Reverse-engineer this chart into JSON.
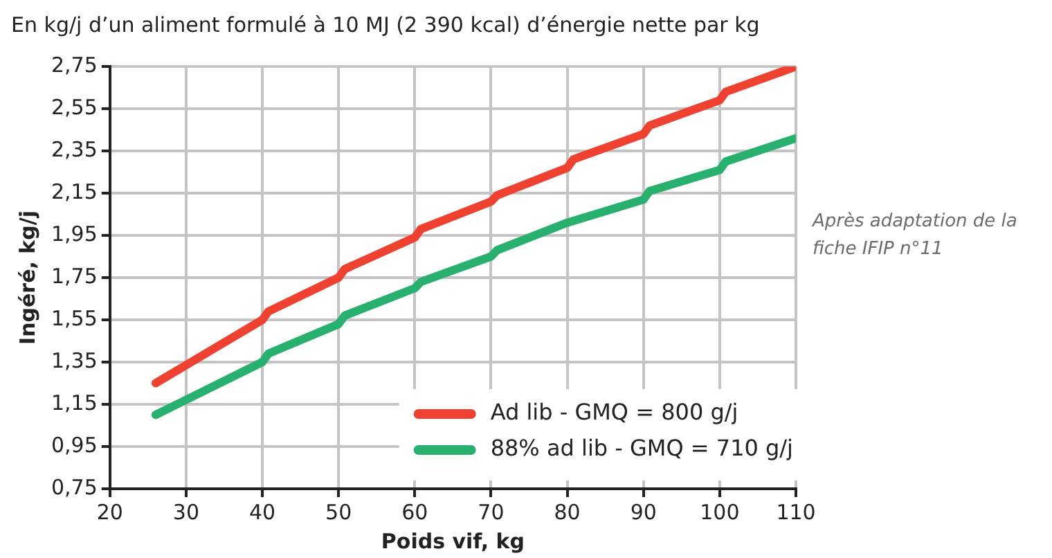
{
  "chart_data": {
    "type": "line",
    "title": "En kg/j d’un aliment formulé à 10 MJ (2 390 kcal) d’énergie nette par kg",
    "xlabel": "Poids vif, kg",
    "ylabel": "Ingéré, kg/j",
    "annotations": [
      "Après adaptation de la fiche IFIP n°11"
    ],
    "series": [
      {
        "name": "Ad lib - GMQ = 800 g/j",
        "color": "#ee4130",
        "x": [
          26,
          40,
          40.8,
          50,
          50.8,
          60,
          60.8,
          70,
          70.8,
          80,
          80.8,
          90,
          90.8,
          100,
          100.8,
          110
        ],
        "values": [
          1.25,
          1.55,
          1.59,
          1.75,
          1.79,
          1.94,
          1.98,
          2.11,
          2.14,
          2.27,
          2.31,
          2.43,
          2.47,
          2.59,
          2.63,
          2.75
        ]
      },
      {
        "name": "88% ad lib - GMQ = 710 g/j",
        "color": "#27b06e",
        "x": [
          26,
          40,
          40.8,
          50,
          50.8,
          60,
          60.8,
          70,
          70.8,
          80,
          90,
          90.8,
          100,
          100.8,
          110
        ],
        "values": [
          1.1,
          1.35,
          1.39,
          1.53,
          1.57,
          1.7,
          1.73,
          1.85,
          1.88,
          2.01,
          2.12,
          2.16,
          2.26,
          2.3,
          2.41
        ]
      }
    ],
    "xlim": [
      20,
      110
    ],
    "xticks": [
      20,
      30,
      40,
      50,
      60,
      70,
      80,
      90,
      100,
      110
    ],
    "ylim": [
      0.75,
      2.75
    ],
    "yticks": [
      {
        "value": 0.75,
        "label": "0,75"
      },
      {
        "value": 0.95,
        "label": "0,95"
      },
      {
        "value": 1.15,
        "label": "1,15"
      },
      {
        "value": 1.35,
        "label": "1,35"
      },
      {
        "value": 1.55,
        "label": "1,55"
      },
      {
        "value": 1.75,
        "label": "1,75"
      },
      {
        "value": 1.95,
        "label": "1,95"
      },
      {
        "value": 2.15,
        "label": "2,15"
      },
      {
        "value": 2.35,
        "label": "2,35"
      },
      {
        "value": 2.55,
        "label": "2,55"
      },
      {
        "value": 2.75,
        "label": "2,75"
      }
    ],
    "grid": true,
    "legend": "bottom right",
    "marker": "none",
    "line_style": "solid"
  }
}
